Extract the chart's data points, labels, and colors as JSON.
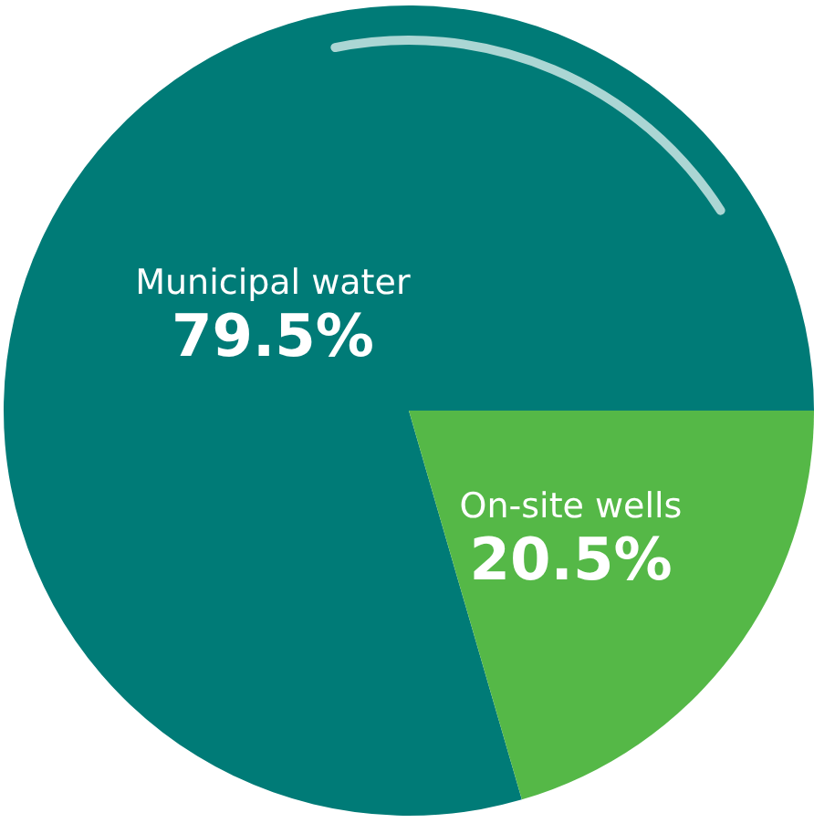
{
  "chart_data": {
    "type": "pie",
    "categories": [
      "Municipal water",
      "On-site wells"
    ],
    "values": [
      79.5,
      20.5
    ],
    "colors": [
      "#007b77",
      "#55b847"
    ],
    "value_labels": [
      "79.5%",
      "20.5%"
    ]
  }
}
